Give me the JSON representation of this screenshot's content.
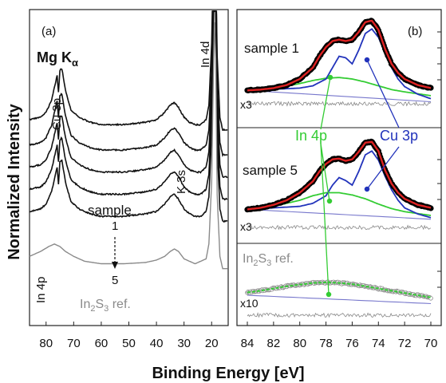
{
  "figure": {
    "ylabel": "Normalized Intensity",
    "xlabel": "Binding Energy [eV]"
  },
  "chart_data": [
    {
      "panel": "(a)",
      "type": "line",
      "source": "Mg Kα",
      "xlabel": "Binding Energy [eV]",
      "ylabel": "Normalized Intensity",
      "xlim": [
        86,
        14
      ],
      "x_ticks": [
        80,
        70,
        60,
        50,
        40,
        30,
        20
      ],
      "x_reversed": true,
      "grid": false,
      "peak_labels": [
        "Cu 3p",
        "K 3s",
        "In 4d",
        "In 4p"
      ],
      "sample_labels": {
        "title": "sample",
        "first": "1",
        "last": "5"
      },
      "ref_label": {
        "main": "In",
        "sub1": "2",
        "mid": "S",
        "sub2": "3",
        "tail": " ref."
      },
      "series": [
        {
          "name": "1",
          "color": "#111111",
          "offset": 0.62,
          "x": [
            86,
            82,
            80,
            78,
            76,
            75.5,
            75,
            74.3,
            73,
            71,
            68,
            64,
            60,
            56,
            52,
            48,
            44,
            40,
            37,
            35,
            33.5,
            32,
            30,
            28,
            26,
            24,
            22,
            21,
            20,
            19.5,
            19,
            18.5,
            18,
            17,
            16,
            14
          ],
          "y": [
            0.04,
            0.05,
            0.07,
            0.12,
            0.22,
            0.15,
            0.24,
            0.25,
            0.16,
            0.08,
            0.05,
            0.03,
            0.02,
            0.02,
            0.02,
            0.025,
            0.03,
            0.04,
            0.07,
            0.1,
            0.11,
            0.09,
            0.05,
            0.03,
            0.02,
            0.02,
            0.04,
            0.1,
            0.35,
            0.7,
            1.0,
            0.85,
            0.3,
            0.05,
            0.0,
            0.0
          ]
        },
        {
          "name": "2",
          "color": "#111111",
          "offset": 0.54,
          "x": [
            86,
            82,
            80,
            78,
            76,
            75.5,
            75,
            74.3,
            73,
            71,
            68,
            64,
            60,
            56,
            52,
            48,
            44,
            40,
            37,
            35,
            33.5,
            32,
            30,
            28,
            26,
            24,
            22,
            21,
            20,
            19.5,
            19,
            18.5,
            18,
            17,
            16,
            14
          ],
          "y": [
            0.04,
            0.05,
            0.07,
            0.12,
            0.22,
            0.15,
            0.24,
            0.25,
            0.16,
            0.08,
            0.05,
            0.03,
            0.02,
            0.02,
            0.02,
            0.025,
            0.03,
            0.04,
            0.07,
            0.1,
            0.11,
            0.09,
            0.05,
            0.03,
            0.02,
            0.02,
            0.04,
            0.1,
            0.35,
            0.7,
            1.0,
            0.85,
            0.3,
            0.05,
            0.0,
            0.0
          ]
        },
        {
          "name": "3",
          "color": "#111111",
          "offset": 0.47,
          "x": [
            86,
            82,
            80,
            78,
            76,
            75.5,
            75,
            74.3,
            73,
            71,
            68,
            64,
            60,
            56,
            52,
            48,
            44,
            40,
            37,
            35,
            33.5,
            32,
            30,
            28,
            26,
            24,
            22,
            21,
            20,
            19.5,
            19,
            18.5,
            18,
            17,
            16,
            14
          ],
          "y": [
            0.04,
            0.05,
            0.07,
            0.12,
            0.22,
            0.15,
            0.24,
            0.25,
            0.16,
            0.08,
            0.05,
            0.03,
            0.02,
            0.02,
            0.02,
            0.025,
            0.03,
            0.04,
            0.07,
            0.1,
            0.11,
            0.09,
            0.05,
            0.03,
            0.02,
            0.02,
            0.04,
            0.1,
            0.35,
            0.7,
            1.0,
            0.85,
            0.3,
            0.05,
            0.0,
            0.0
          ]
        },
        {
          "name": "4",
          "color": "#111111",
          "offset": 0.4,
          "x": [
            86,
            82,
            80,
            78,
            76,
            75.5,
            75,
            74.3,
            73,
            71,
            68,
            64,
            60,
            56,
            52,
            48,
            44,
            40,
            37,
            35,
            33.5,
            32,
            30,
            28,
            26,
            24,
            22,
            21,
            20,
            19.5,
            19,
            18.5,
            18,
            17,
            16,
            14
          ],
          "y": [
            0.04,
            0.05,
            0.07,
            0.12,
            0.22,
            0.15,
            0.24,
            0.25,
            0.16,
            0.08,
            0.05,
            0.03,
            0.02,
            0.02,
            0.02,
            0.025,
            0.03,
            0.04,
            0.07,
            0.1,
            0.11,
            0.09,
            0.05,
            0.03,
            0.02,
            0.02,
            0.04,
            0.1,
            0.35,
            0.7,
            1.0,
            0.85,
            0.3,
            0.05,
            0.0,
            0.0
          ]
        },
        {
          "name": "5",
          "color": "#111111",
          "offset": 0.33,
          "x": [
            86,
            82,
            80,
            78,
            76,
            75.5,
            75,
            74.3,
            73,
            71,
            68,
            64,
            60,
            56,
            52,
            48,
            44,
            40,
            37,
            35,
            33.5,
            32,
            30,
            28,
            26,
            24,
            22,
            21,
            20,
            19.5,
            19,
            18.5,
            18,
            17,
            16,
            14
          ],
          "y": [
            0.04,
            0.05,
            0.07,
            0.12,
            0.22,
            0.15,
            0.24,
            0.25,
            0.16,
            0.08,
            0.05,
            0.03,
            0.02,
            0.02,
            0.02,
            0.025,
            0.03,
            0.04,
            0.07,
            0.1,
            0.11,
            0.09,
            0.05,
            0.03,
            0.02,
            0.02,
            0.04,
            0.1,
            0.35,
            0.7,
            1.0,
            0.85,
            0.3,
            0.05,
            0.0,
            0.0
          ]
        },
        {
          "name": "In2S3 ref.",
          "color": "#8a8a8a",
          "offset": 0.18,
          "x": [
            86,
            82,
            79,
            77,
            75,
            73,
            70,
            66,
            60,
            52,
            44,
            40,
            37,
            35,
            33.5,
            32,
            30,
            26,
            22,
            21,
            20,
            19.5,
            19,
            18.5,
            18,
            17,
            16,
            14
          ],
          "y": [
            0.05,
            0.07,
            0.09,
            0.1,
            0.09,
            0.07,
            0.05,
            0.03,
            0.02,
            0.02,
            0.025,
            0.035,
            0.05,
            0.07,
            0.08,
            0.07,
            0.04,
            0.02,
            0.04,
            0.1,
            0.35,
            0.7,
            1.0,
            0.85,
            0.3,
            0.05,
            0.0,
            0.0
          ]
        }
      ]
    },
    {
      "panel": "(b)",
      "type": "line",
      "xlabel": "Binding Energy [eV]",
      "xlim": [
        84,
        70
      ],
      "x_ticks": [
        84,
        82,
        80,
        78,
        76,
        74,
        72,
        70
      ],
      "x_reversed": true,
      "grid": false,
      "fit_labels": [
        "In 4p",
        "Cu 3p"
      ],
      "sections": [
        {
          "label": "sample 1",
          "residual_scale": "x3",
          "data": {
            "x": [
              84,
              83,
              82,
              81,
              80,
              79,
              78.5,
              78,
              77.5,
              77,
              76.5,
              76,
              75.5,
              75,
              74.5,
              74,
              73.5,
              73,
              72.5,
              72,
              71,
              70
            ],
            "y": [
              0.05,
              0.06,
              0.08,
              0.12,
              0.2,
              0.35,
              0.5,
              0.62,
              0.7,
              0.72,
              0.7,
              0.72,
              0.82,
              0.95,
              0.97,
              0.85,
              0.6,
              0.4,
              0.28,
              0.2,
              0.12,
              0.08
            ]
          },
          "background": {
            "x": [
              84,
              70
            ],
            "y": [
              0.05,
              -0.1
            ]
          },
          "in4p": {
            "x": [
              84,
              82,
              80,
              79,
              78,
              77,
              76,
              75,
              74,
              73,
              72,
              70
            ],
            "y": [
              0.05,
              0.07,
              0.14,
              0.18,
              0.21,
              0.22,
              0.2,
              0.16,
              0.11,
              0.06,
              0.03,
              -0.02
            ]
          },
          "cu3p": {
            "x": [
              84,
              80,
              79,
              78,
              77.5,
              77,
              76.5,
              76,
              75.5,
              75,
              74.5,
              74,
              73.5,
              73,
              72.5,
              72,
              71,
              70
            ],
            "y": [
              0.05,
              0.08,
              0.11,
              0.2,
              0.35,
              0.5,
              0.48,
              0.4,
              0.58,
              0.8,
              0.86,
              0.75,
              0.55,
              0.35,
              0.2,
              0.1,
              0.0,
              -0.06
            ]
          }
        },
        {
          "label": "sample 5",
          "residual_scale": "x3",
          "data": {
            "x": [
              84,
              83,
              82,
              81,
              80,
              79,
              78.5,
              78,
              77.5,
              77,
              76.5,
              76,
              75.5,
              75,
              74.5,
              74,
              73.5,
              73,
              72.5,
              72,
              71,
              70
            ],
            "y": [
              0.08,
              0.1,
              0.14,
              0.2,
              0.3,
              0.45,
              0.58,
              0.68,
              0.74,
              0.75,
              0.72,
              0.74,
              0.84,
              0.96,
              0.97,
              0.85,
              0.6,
              0.42,
              0.3,
              0.22,
              0.14,
              0.1
            ]
          },
          "background": {
            "x": [
              84,
              70
            ],
            "y": [
              0.08,
              -0.05
            ]
          },
          "in4p": {
            "x": [
              84,
              82,
              80,
              79,
              78,
              77,
              76,
              75,
              74,
              73,
              72,
              70
            ],
            "y": [
              0.08,
              0.12,
              0.2,
              0.26,
              0.3,
              0.3,
              0.27,
              0.22,
              0.15,
              0.09,
              0.05,
              0.0
            ]
          },
          "cu3p": {
            "x": [
              84,
              80,
              79,
              78,
              77.5,
              77,
              76.5,
              76,
              75.5,
              75,
              74.5,
              74,
              73.5,
              73,
              72.5,
              72,
              71,
              70
            ],
            "y": [
              0.08,
              0.12,
              0.16,
              0.26,
              0.4,
              0.5,
              0.46,
              0.4,
              0.58,
              0.8,
              0.85,
              0.73,
              0.52,
              0.34,
              0.2,
              0.1,
              0.02,
              -0.03
            ]
          }
        },
        {
          "label_main": "In",
          "label_sub1": "2",
          "label_mid": "S",
          "label_sub2": "3",
          "label_tail": " ref.",
          "residual_scale": "x10",
          "data": {
            "x": [
              84,
              83,
              82,
              81,
              80,
              79,
              78,
              77,
              76,
              75,
              74,
              73,
              72,
              71,
              70
            ],
            "y": [
              0.05,
              0.08,
              0.12,
              0.16,
              0.19,
              0.22,
              0.23,
              0.22,
              0.2,
              0.16,
              0.12,
              0.08,
              0.04,
              0.0,
              -0.04
            ]
          },
          "background": {
            "x": [
              84,
              70
            ],
            "y": [
              0.0,
              -0.15
            ]
          }
        }
      ]
    }
  ],
  "colors": {
    "data": "#000000",
    "envelope": "#dd2222",
    "in4p": "#33cc33",
    "cu3p": "#2233bb",
    "background": "#7777cc",
    "residual": "#888888",
    "ref": "#8a8a8a",
    "ref_fit": "#c080c0"
  }
}
